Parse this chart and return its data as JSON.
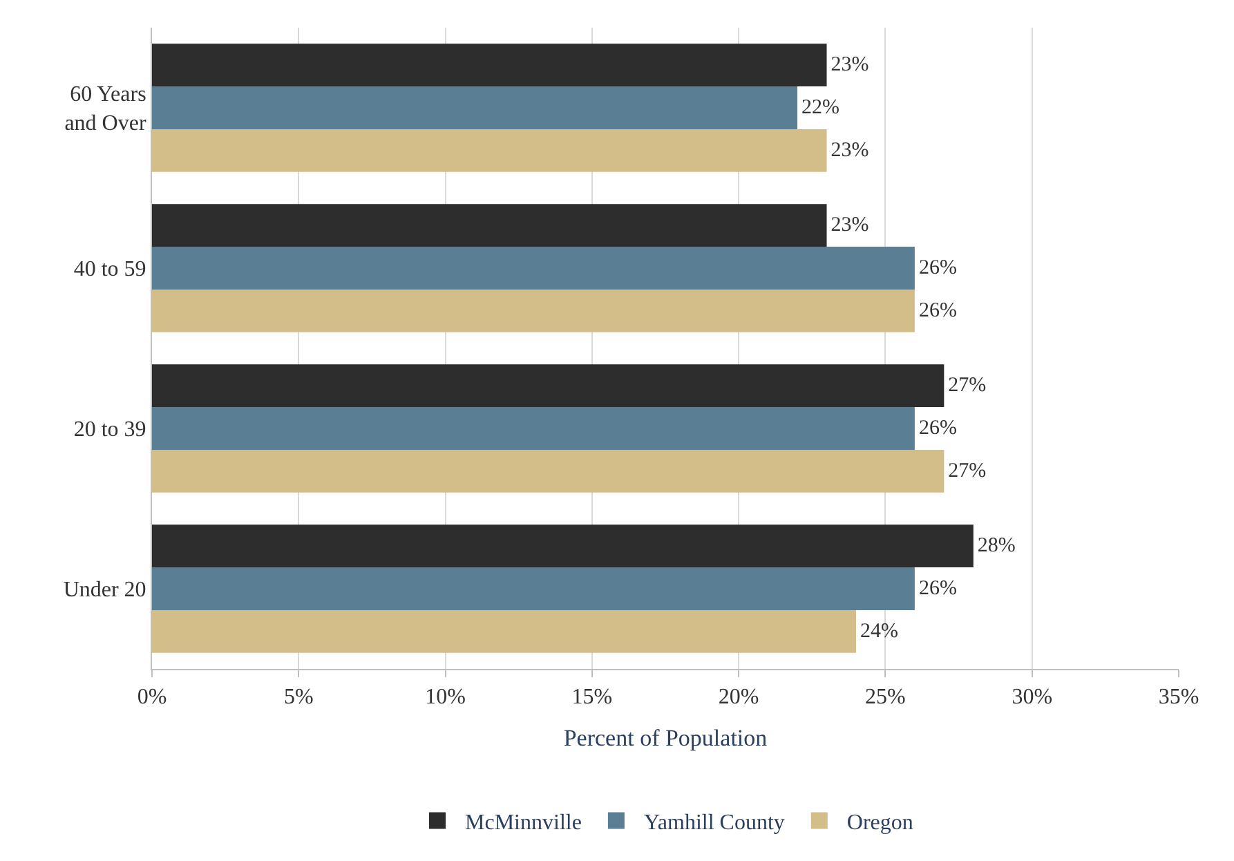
{
  "chart_data": {
    "type": "bar",
    "orientation": "horizontal",
    "xlabel": "Percent of Population",
    "categories": [
      "60 Years and Over",
      "40 to 59",
      "20 to 39",
      "Under 20"
    ],
    "series": [
      {
        "name": "McMinnville",
        "color": "#2d2d2d",
        "values": [
          23,
          23,
          27,
          28
        ],
        "value_labels": [
          "23%",
          "23%",
          "27%",
          "28%"
        ]
      },
      {
        "name": "Yamhill County",
        "color": "#5a7f94",
        "values": [
          22,
          26,
          26,
          26
        ],
        "value_labels": [
          "22%",
          "26%",
          "26%",
          "26%"
        ]
      },
      {
        "name": "Oregon",
        "color": "#d3bd88",
        "values": [
          23,
          26,
          27,
          24
        ],
        "value_labels": [
          "23%",
          "26%",
          "27%",
          "24%"
        ]
      }
    ],
    "xlim": [
      0,
      35
    ],
    "xticks": [
      {
        "value": 0,
        "label": "0%"
      },
      {
        "value": 5,
        "label": "5%"
      },
      {
        "value": 10,
        "label": "10%"
      },
      {
        "value": 15,
        "label": "15%"
      },
      {
        "value": 20,
        "label": "20%"
      },
      {
        "value": 25,
        "label": "25%"
      },
      {
        "value": 30,
        "label": "30%"
      },
      {
        "value": 35,
        "label": "35%"
      }
    ],
    "grid": "x",
    "legend": "bottom"
  }
}
